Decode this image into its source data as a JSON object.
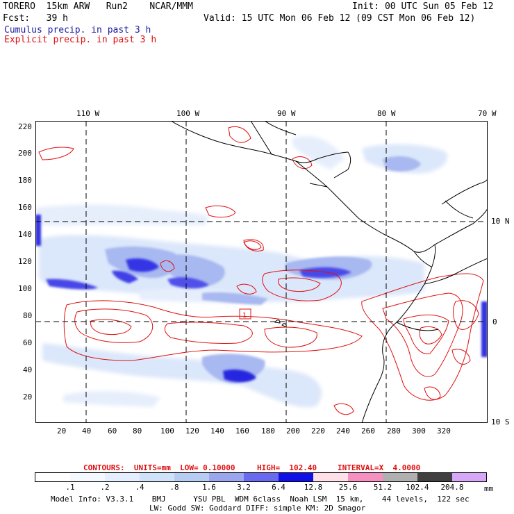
{
  "header": {
    "model": "TORERO  15km ARW   Run2    NCAR/MMM",
    "init": "Init: 00 UTC Sun 05 Feb 12",
    "fcst": "Fcst:   39 h",
    "valid": "Valid: 15 UTC Mon 06 Feb 12 (09 CST Mon 06 Feb 12)",
    "cumulus_label": "Cumulus precip. in past 3 h",
    "explicit_label": "Explicit precip. in past 3 h",
    "cumulus_color": "#1a1aa0",
    "explicit_color": "#e01010"
  },
  "map": {
    "top_lon_labels": [
      "110 W",
      "100 W",
      "90 W",
      "80 W",
      "70 W"
    ],
    "right_lat_labels": [
      "10 N",
      "0",
      "10 S"
    ],
    "y_ticks": [
      "220",
      "200",
      "180",
      "160",
      "140",
      "120",
      "100",
      "80",
      "60",
      "40",
      "20"
    ],
    "x_ticks": [
      "20",
      "40",
      "60",
      "80",
      "100",
      "120",
      "140",
      "160",
      "180",
      "200",
      "220",
      "240",
      "260",
      "280",
      "300",
      "320"
    ],
    "box_label": "1"
  },
  "contour_info": {
    "units": "CONTOURS:  UNITS=mm  LOW= 0.10000",
    "high": "HIGH=  102.40",
    "interval": "INTERVAL=X  4.0000"
  },
  "legend": {
    "values": [
      ".1",
      ".2",
      ".4",
      ".8",
      "1.6",
      "3.2",
      "6.4",
      "12.8",
      "25.6",
      "51.2",
      "102.4",
      "204.8"
    ],
    "units": "mm",
    "colors": [
      "#ffffff",
      "#f4f8ff",
      "#e4eeff",
      "#d0e2fa",
      "#b6ccf2",
      "#9aa6ee",
      "#6a6af0",
      "#1010e8",
      "#ffe0e8",
      "#f590c0",
      "#b0b0b0",
      "#404040",
      "#d8a8f8"
    ]
  },
  "model_info": {
    "line1": "Model Info: V3.3.1    BMJ      YSU PBL  WDM 6class  Noah LSM  15 km,    44 levels,  122 sec",
    "line2": "LW: Godd SW: Goddard DIFF: simple KM: 2D Smagor"
  }
}
